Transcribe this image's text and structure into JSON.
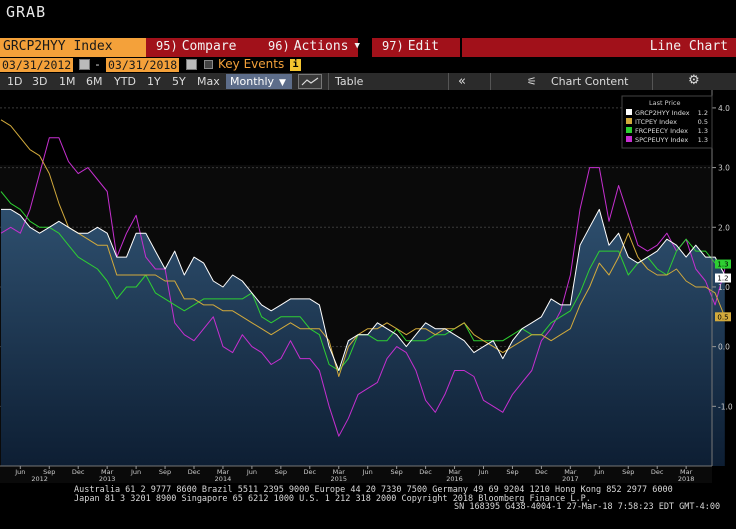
{
  "app": {
    "title": "GRAB"
  },
  "command_bar": {
    "ticker": "GRCP2HYY Index",
    "menus": [
      {
        "num": "95)",
        "label": "Compare"
      },
      {
        "num": "96)",
        "label": "Actions"
      },
      {
        "num": "97)",
        "label": "Edit"
      }
    ],
    "chart_type": "Line Chart"
  },
  "date_bar": {
    "start_date": "03/31/2012",
    "end_date": "03/31/2018",
    "separator": "-",
    "key_events_label": "Key Events",
    "info_icon": "i"
  },
  "toolbar": {
    "periods": [
      "1D",
      "3D",
      "1M",
      "6M",
      "YTD",
      "1Y",
      "5Y",
      "Max"
    ],
    "frequency": "Monthly",
    "table_label": "Table",
    "back_icon": "double-chevron-left-icon",
    "back_glyph": "«",
    "chart_content_icon_glyph": "⚟",
    "chart_content_label": "Chart Content",
    "gear_icon_glyph": "⚙"
  },
  "legend": {
    "header": "Last Price",
    "placement": "top-right"
  },
  "chart_data": {
    "type": "line",
    "x_start": "2012-04",
    "x_frequency": "monthly",
    "ylim": [
      -2.0,
      4.3
    ],
    "y_ticks": [
      "4.0",
      "3.0",
      "2.0",
      "1.0",
      "0.0",
      "-1.0"
    ],
    "x_month_labels": [
      "Jun",
      "Sep",
      "Dec",
      "Mar",
      "Jun",
      "Sep",
      "Dec",
      "Mar",
      "Jun",
      "Sep",
      "Dec",
      "Mar",
      "Jun",
      "Sep",
      "Dec",
      "Mar",
      "Jun",
      "Sep",
      "Dec",
      "Mar",
      "Jun",
      "Sep",
      "Dec",
      "Mar"
    ],
    "x_year_labels": [
      "2012",
      "2013",
      "2014",
      "2015",
      "2016",
      "2017",
      "2018"
    ],
    "series": [
      {
        "name": "GRCP2HYY Index",
        "last": "1.2",
        "color": "#ffffff",
        "area": true,
        "values": [
          2.3,
          2.3,
          2.2,
          2.0,
          1.9,
          2.0,
          2.1,
          2.0,
          1.9,
          1.9,
          2.0,
          1.9,
          1.5,
          1.5,
          1.9,
          1.9,
          1.6,
          1.3,
          1.6,
          1.2,
          1.5,
          1.4,
          1.1,
          1.0,
          1.2,
          1.1,
          0.9,
          0.7,
          0.6,
          0.7,
          0.8,
          0.8,
          0.8,
          0.7,
          0.0,
          -0.4,
          0.1,
          0.2,
          0.2,
          0.4,
          0.3,
          0.2,
          0.0,
          0.2,
          0.4,
          0.3,
          0.3,
          0.2,
          0.1,
          -0.1,
          0.0,
          0.1,
          -0.2,
          0.1,
          0.3,
          0.4,
          0.5,
          0.8,
          0.7,
          0.7,
          1.7,
          2.0,
          2.3,
          1.7,
          1.9,
          1.5,
          1.4,
          1.5,
          1.6,
          1.8,
          1.7,
          1.5,
          1.7,
          1.5,
          1.5,
          1.2
        ]
      },
      {
        "name": "ITCPEY Index",
        "last": "0.5",
        "color": "#d2aa3c",
        "area": false,
        "values": [
          3.8,
          3.7,
          3.5,
          3.3,
          3.2,
          2.9,
          2.4,
          2.0,
          1.9,
          1.8,
          1.7,
          1.7,
          1.2,
          1.2,
          1.2,
          1.2,
          1.2,
          1.1,
          1.1,
          0.8,
          0.8,
          0.7,
          0.7,
          0.6,
          0.6,
          0.5,
          0.4,
          0.3,
          0.2,
          0.3,
          0.4,
          0.3,
          0.3,
          0.3,
          0.1,
          -0.5,
          0.0,
          0.2,
          0.3,
          0.3,
          0.4,
          0.3,
          0.2,
          0.3,
          0.3,
          0.2,
          0.3,
          0.3,
          0.4,
          0.2,
          0.1,
          0.0,
          -0.1,
          0.0,
          0.1,
          0.2,
          0.2,
          0.1,
          0.2,
          0.3,
          0.7,
          1.0,
          1.4,
          1.2,
          1.5,
          1.9,
          1.5,
          1.3,
          1.2,
          1.2,
          1.3,
          1.1,
          1.0,
          1.0,
          0.9,
          0.5
        ]
      },
      {
        "name": "FRCPEECY Index",
        "last": "1.3",
        "color": "#2ecf32",
        "area": false,
        "values": [
          2.6,
          2.4,
          2.3,
          2.1,
          2.0,
          2.0,
          1.9,
          1.7,
          1.5,
          1.4,
          1.3,
          1.1,
          0.8,
          1.0,
          1.0,
          1.2,
          0.9,
          0.8,
          0.7,
          0.6,
          0.7,
          0.8,
          0.8,
          0.8,
          0.8,
          0.8,
          0.9,
          0.5,
          0.4,
          0.5,
          0.5,
          0.5,
          0.3,
          0.2,
          -0.3,
          -0.4,
          -0.2,
          0.2,
          0.2,
          0.1,
          0.1,
          0.3,
          0.1,
          0.1,
          0.1,
          0.2,
          0.2,
          0.3,
          0.4,
          0.1,
          0.1,
          0.1,
          0.1,
          0.2,
          0.3,
          0.2,
          0.2,
          0.4,
          0.5,
          0.6,
          0.9,
          1.3,
          1.6,
          1.6,
          1.6,
          1.2,
          1.4,
          1.5,
          1.3,
          1.2,
          1.6,
          1.8,
          1.6,
          1.6,
          1.4,
          1.3
        ]
      },
      {
        "name": "SPCPEUYY Index",
        "last": "1.3",
        "color": "#c62fd0",
        "area": false,
        "values": [
          1.9,
          2.0,
          1.9,
          2.3,
          2.9,
          3.5,
          3.5,
          3.1,
          2.9,
          3.0,
          2.8,
          2.6,
          1.5,
          1.9,
          2.2,
          1.5,
          1.3,
          1.3,
          0.4,
          0.2,
          0.1,
          0.3,
          0.5,
          0.0,
          -0.1,
          0.2,
          0.0,
          -0.1,
          -0.3,
          -0.2,
          0.1,
          -0.2,
          -0.2,
          -0.4,
          -1.0,
          -1.5,
          -1.2,
          -0.8,
          -0.7,
          -0.6,
          -0.2,
          0.0,
          -0.1,
          -0.4,
          -0.9,
          -1.1,
          -0.8,
          -0.4,
          -0.4,
          -0.5,
          -0.9,
          -1.0,
          -1.1,
          -0.8,
          -0.6,
          -0.4,
          0.1,
          0.3,
          0.6,
          1.2,
          2.3,
          3.0,
          3.0,
          2.1,
          2.7,
          2.2,
          1.7,
          1.6,
          1.7,
          1.9,
          1.6,
          1.8,
          1.3,
          1.1,
          0.7,
          1.3
        ]
      }
    ]
  },
  "footer": {
    "line1": "Australia 61 2 9777 8600 Brazil 5511 2395 9000 Europe 44 20 7330 7500 Germany 49 69 9204 1210 Hong Kong 852 2977 6000",
    "line2": "Japan 81 3 3201 8900       Singapore 65 6212 1000      U.S. 1 212 318 2000            Copyright 2018 Bloomberg Finance L.P.",
    "line3": "SN 168395 G438-4004-1 27-Mar-18  7:58:23 EDT  GMT-4:00"
  }
}
